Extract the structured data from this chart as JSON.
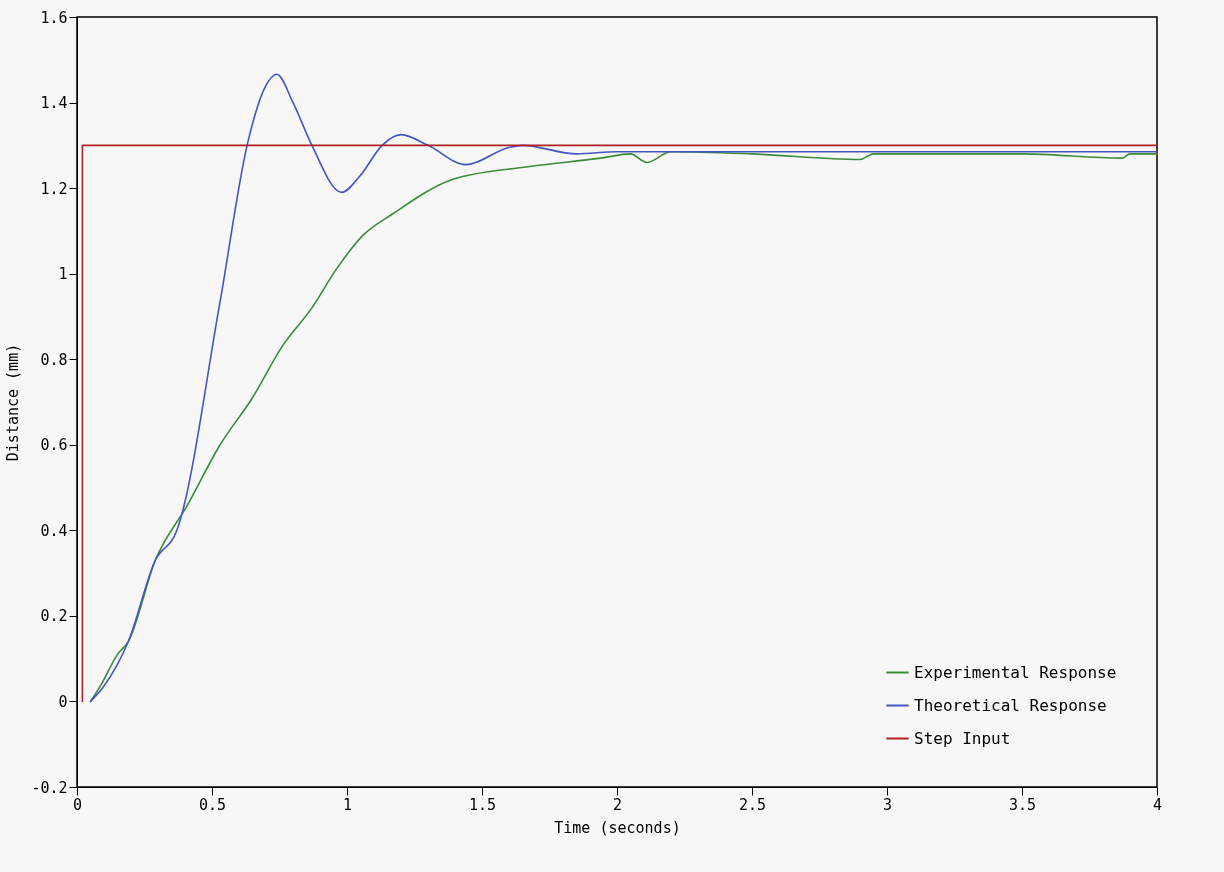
{
  "chart_data": {
    "type": "line",
    "xlabel": "Time (seconds)",
    "ylabel": "Distance (mm)",
    "xlim": [
      0,
      4
    ],
    "xticks": [
      0,
      0.5,
      1,
      1.5,
      2,
      2.5,
      3,
      3.5,
      4
    ],
    "ylim": [
      -0.2,
      1.6
    ],
    "yticks": [
      -0.2,
      0,
      0.2,
      0.4,
      0.6,
      0.8,
      1,
      1.2,
      1.4,
      1.6
    ],
    "grid": false,
    "legend": "bottom right",
    "marker": "none",
    "line_style": "solid",
    "series": [
      {
        "name": "Experimental Response",
        "color": "#3a8a3a",
        "x": [
          0.05,
          0.09,
          0.15,
          0.19,
          0.29,
          0.41,
          0.53,
          0.65,
          0.76,
          0.87,
          0.96,
          1.06,
          1.17,
          1.39,
          1.67,
          1.94,
          2.05,
          2.11,
          2.2,
          2.5,
          2.9,
          2.95,
          3.2,
          3.5,
          3.87,
          3.9,
          4
        ],
        "values": [
          0,
          0.04,
          0.11,
          0.14,
          0.33,
          0.46,
          0.6,
          0.71,
          0.83,
          0.92,
          1.01,
          1.09,
          1.14,
          1.22,
          1.25,
          1.27,
          1.28,
          1.26,
          1.285,
          1.28,
          1.267,
          1.28,
          1.28,
          1.28,
          1.27,
          1.28,
          1.28
        ]
      },
      {
        "name": "Theoretical  Response",
        "color": "#4455c0",
        "x": [
          0.05,
          0.1,
          0.19,
          0.29,
          0.37,
          0.53,
          0.63,
          0.7,
          0.74,
          0.8,
          0.87,
          0.98,
          1.05,
          1.13,
          1.2,
          1.3,
          1.44,
          1.6,
          1.65,
          1.85,
          2.0,
          2.5,
          3,
          3.5,
          4
        ],
        "values": [
          0,
          0.036,
          0.14,
          0.33,
          0.4,
          0.935,
          1.3,
          1.44,
          1.466,
          1.4,
          1.3,
          1.19,
          1.23,
          1.3,
          1.325,
          1.3,
          1.255,
          1.295,
          1.3,
          1.28,
          1.285,
          1.285,
          1.285,
          1.285,
          1.285
        ]
      },
      {
        "name": "Step Input",
        "color": "#b02020",
        "x": [
          0.02,
          0.02,
          4
        ],
        "values": [
          0,
          1.3,
          1.3
        ]
      }
    ]
  }
}
